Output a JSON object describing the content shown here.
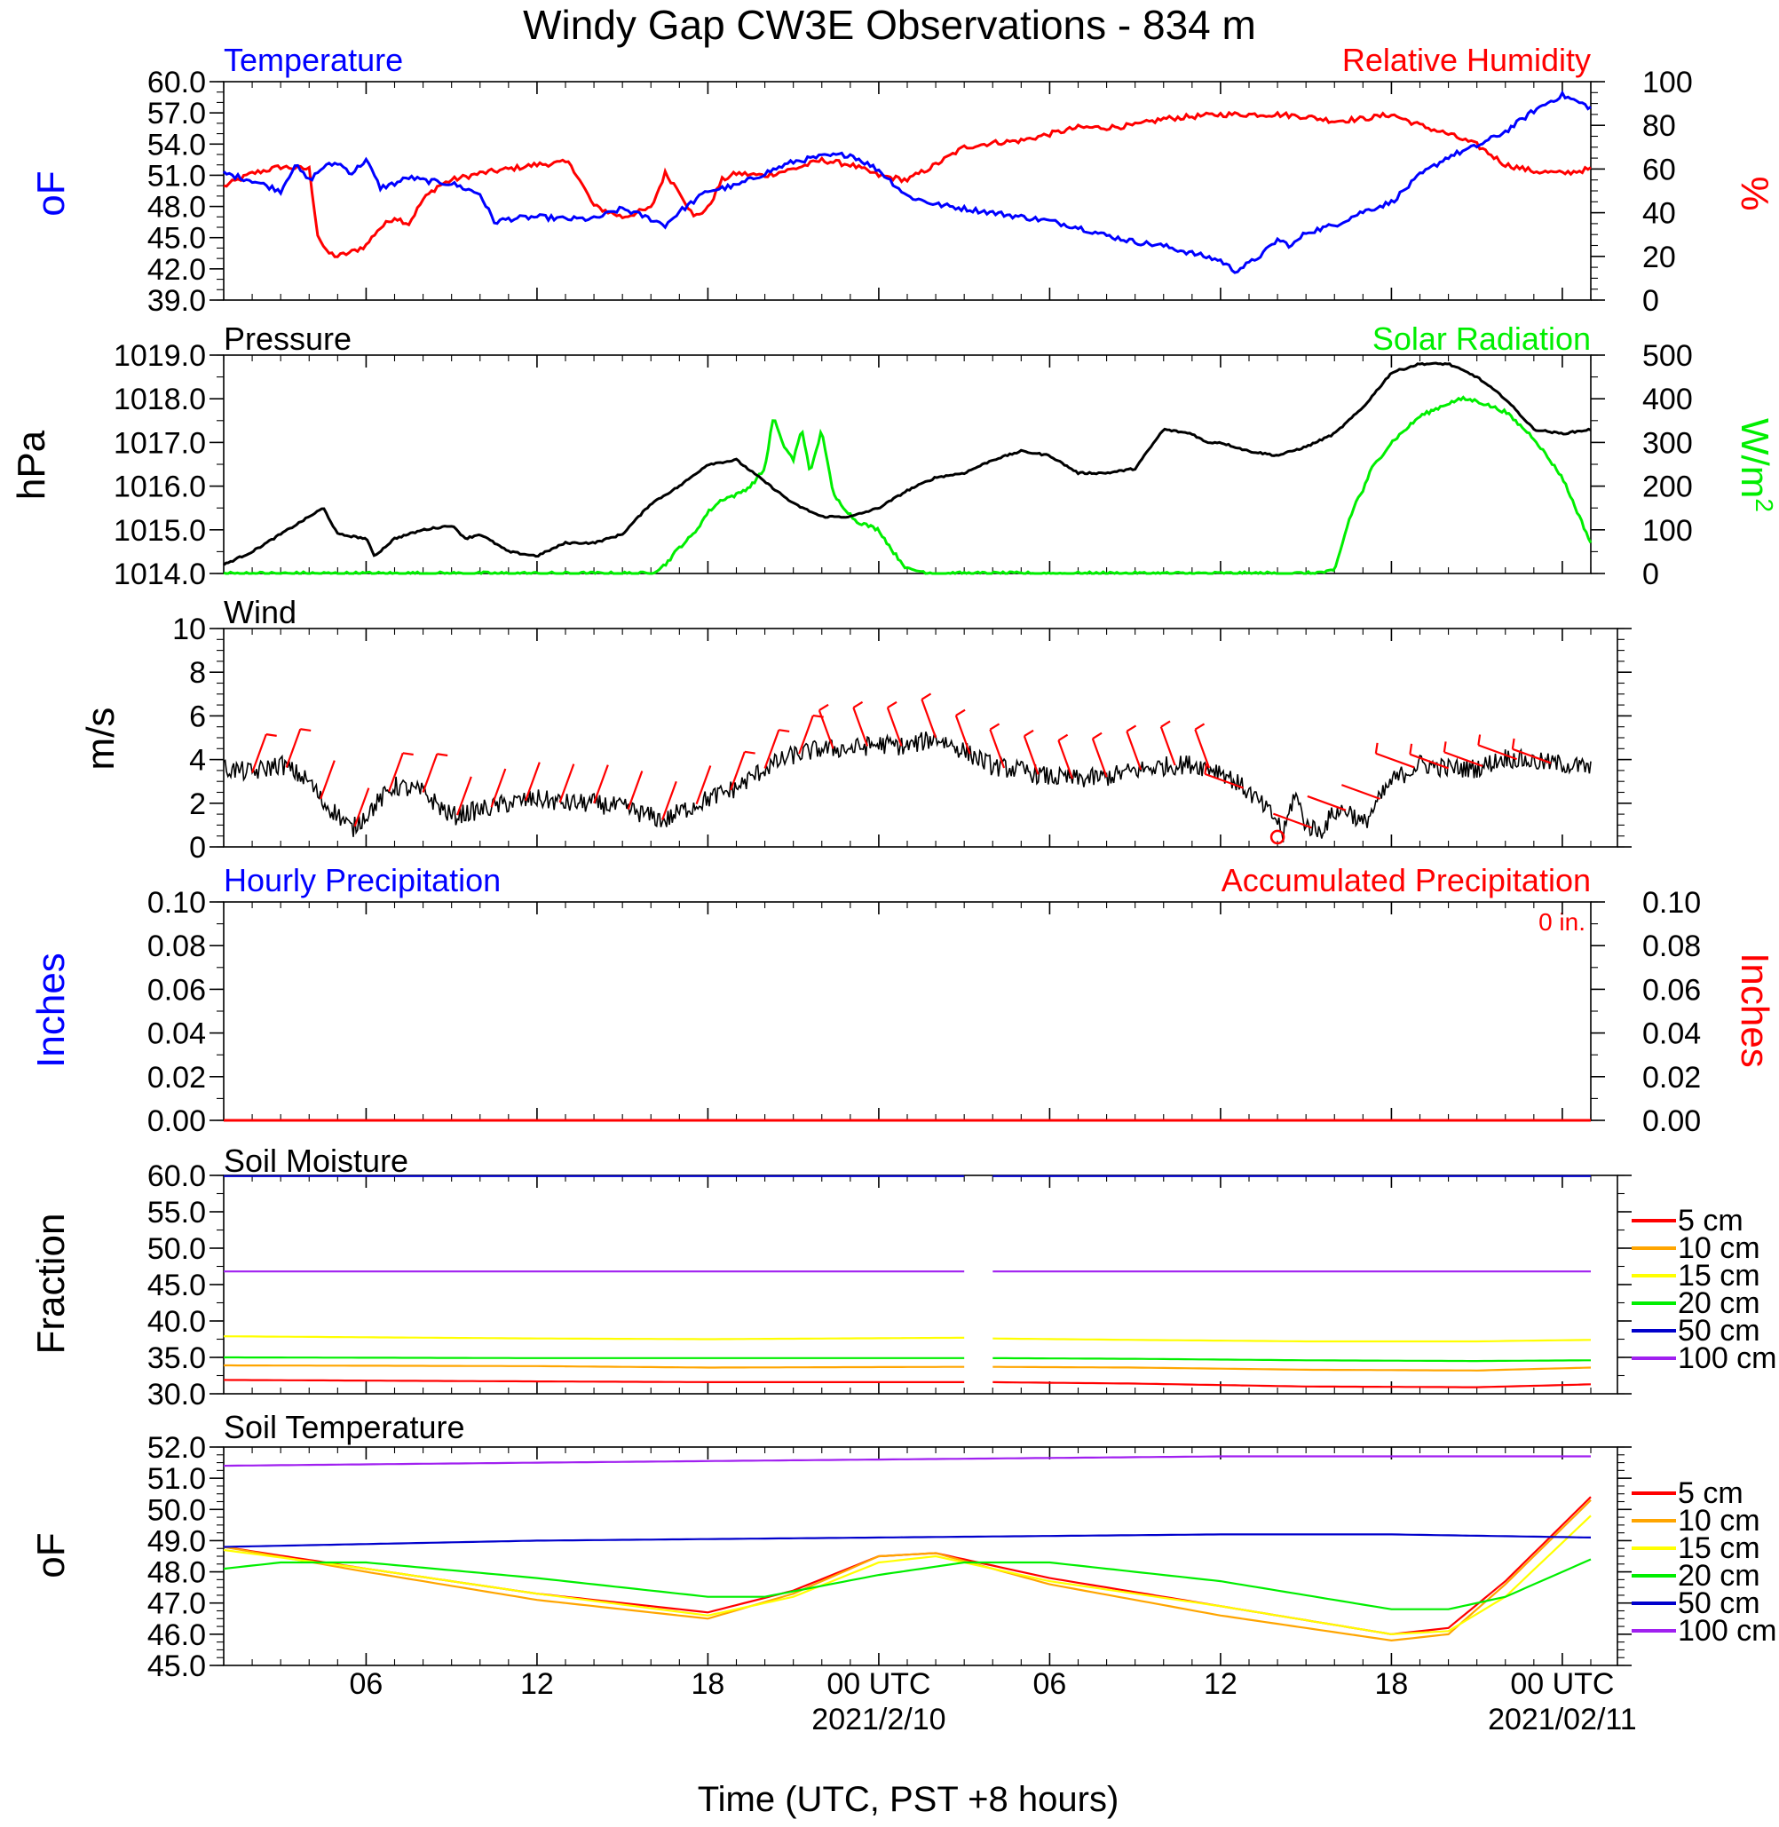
{
  "title": "Windy Gap CW3E Observations - 834 m",
  "x_axis": {
    "label": "Time (UTC, PST +8 hours)",
    "tick_hours": [
      6,
      12,
      18,
      24,
      30,
      36,
      42,
      48
    ],
    "tick_labels": [
      "06",
      "12",
      "18",
      "00 UTC",
      "06",
      "12",
      "18",
      "00 UTC"
    ],
    "date_labels": [
      {
        "hour": 24,
        "text": "2021/2/10"
      },
      {
        "hour": 48,
        "text": "2021/02/11"
      }
    ],
    "start_hour": 1,
    "end_hour": 49
  },
  "colors": {
    "blue": "#0000ff",
    "red": "#ff0000",
    "green": "#00ee00",
    "black": "#000000",
    "orange": "#ffa500",
    "yellow": "#ffff00",
    "darkblue": "#0000cc",
    "purple": "#a020f0"
  },
  "panels": {
    "temperature": {
      "left_title": "Temperature",
      "right_title": "Relative Humidity",
      "left_unit": "oF",
      "right_unit": "%",
      "left_ticks": [
        "60.0",
        "57.0",
        "54.0",
        "51.0",
        "48.0",
        "45.0",
        "42.0",
        "39.0"
      ],
      "right_ticks": [
        "100",
        "80",
        "60",
        "40",
        "20",
        "0"
      ]
    },
    "pressure": {
      "left_title": "Pressure",
      "right_title": "Solar Radiation",
      "left_unit": "hPa",
      "right_unit": "W/m",
      "right_unit_sup": "2",
      "left_ticks": [
        "1019.0",
        "1018.0",
        "1017.0",
        "1016.0",
        "1015.0",
        "1014.0"
      ],
      "right_ticks": [
        "500",
        "400",
        "300",
        "200",
        "100",
        "0"
      ]
    },
    "wind": {
      "left_title": "Wind",
      "left_unit": "m/s",
      "left_ticks": [
        "10",
        "8",
        "6",
        "4",
        "2",
        "0"
      ]
    },
    "precip": {
      "left_title": "Hourly Precipitation",
      "right_title": "Accumulated Precipitation",
      "total_label": "0 in.",
      "left_unit": "Inches",
      "right_unit": "Inches",
      "left_ticks": [
        "0.10",
        "0.08",
        "0.06",
        "0.04",
        "0.02",
        "0.00"
      ],
      "right_ticks": [
        "0.10",
        "0.08",
        "0.06",
        "0.04",
        "0.02",
        "0.00"
      ]
    },
    "soil_moisture": {
      "left_title": "Soil Moisture",
      "left_unit": "Fraction",
      "left_ticks": [
        "60.0",
        "55.0",
        "50.0",
        "45.0",
        "40.0",
        "35.0",
        "30.0"
      ],
      "legend": [
        "5 cm",
        "10 cm",
        "15 cm",
        "20 cm",
        "50 cm",
        "100 cm"
      ]
    },
    "soil_temperature": {
      "left_title": "Soil Temperature",
      "left_unit": "oF",
      "left_ticks": [
        "52.0",
        "51.0",
        "50.0",
        "49.0",
        "48.0",
        "47.0",
        "46.0",
        "45.0"
      ],
      "legend": [
        "5 cm",
        "10 cm",
        "15 cm",
        "20 cm",
        "50 cm",
        "100 cm"
      ]
    }
  },
  "chart_data": [
    {
      "type": "line",
      "title": "Temperature",
      "ylabel": "oF",
      "ylim": [
        39,
        60
      ],
      "series": [
        {
          "name": "Temperature",
          "color": "#0000ff",
          "x": [
            1,
            2,
            3,
            3.5,
            4,
            4.5,
            5,
            5.5,
            6,
            6.5,
            7,
            7.5,
            8,
            9,
            10,
            10.5,
            11,
            12,
            13,
            14,
            15,
            16,
            16.5,
            17,
            18,
            19,
            20,
            21,
            22,
            23,
            24,
            25,
            26,
            27,
            28,
            29,
            30,
            31,
            32,
            33,
            34,
            35,
            36,
            36.5,
            37,
            37.5,
            38,
            38.5,
            39,
            40,
            41,
            42,
            43,
            44,
            45,
            46,
            47,
            47.5,
            48,
            49
          ],
          "y": [
            51.2,
            50.5,
            49.5,
            52,
            50.5,
            51.8,
            52.2,
            51.2,
            52.5,
            49.8,
            50.2,
            50.8,
            50.5,
            50.2,
            49.2,
            46.5,
            46.8,
            47,
            46.8,
            46.8,
            47.8,
            46.8,
            46.2,
            47.5,
            49.5,
            50,
            51.2,
            52.3,
            52.8,
            53,
            51.5,
            49,
            48.2,
            47.8,
            47.4,
            47,
            46.6,
            46,
            45.2,
            44.6,
            44.2,
            43.5,
            42.8,
            41.8,
            42.5,
            43.5,
            44.8,
            44.2,
            45.5,
            46.2,
            47.5,
            48.4,
            51,
            52.8,
            53.8,
            55.2,
            57.2,
            58,
            58.7,
            57.5
          ]
        }
      ]
    },
    {
      "type": "line",
      "title": "Relative Humidity",
      "ylabel": "%",
      "ylim": [
        0,
        100
      ],
      "series": [
        {
          "name": "Relative Humidity",
          "color": "#ff0000",
          "x": [
            1,
            2,
            3,
            4,
            4.3,
            4.6,
            5,
            5.5,
            6,
            6.4,
            7,
            7.5,
            8,
            8.5,
            9,
            10,
            11,
            12,
            13,
            13.2,
            14,
            15,
            16,
            16.5,
            17,
            17.5,
            18,
            18.5,
            19,
            20,
            21,
            22,
            23,
            24,
            25,
            26,
            27,
            28,
            29,
            30,
            31,
            32,
            33,
            34,
            35,
            36,
            37,
            38,
            39,
            40,
            41,
            42,
            43,
            44,
            45,
            46,
            47,
            48,
            49
          ],
          "y": [
            52,
            58,
            61,
            60,
            30,
            22,
            20,
            22,
            25,
            32,
            38,
            35,
            46,
            52,
            55,
            58,
            60,
            62,
            63,
            62,
            43,
            38,
            42,
            58,
            50,
            38,
            42,
            55,
            58,
            57,
            60,
            64,
            62,
            57,
            55,
            62,
            70,
            72,
            73,
            76,
            79,
            79,
            80,
            83,
            84,
            85,
            85,
            85,
            84,
            82,
            83,
            85,
            80,
            76,
            71,
            62,
            59,
            58,
            60
          ]
        }
      ]
    },
    {
      "type": "line",
      "title": "Pressure",
      "ylabel": "hPa",
      "ylim": [
        1014,
        1019
      ],
      "series": [
        {
          "name": "Pressure",
          "color": "#000000",
          "x": [
            1,
            2,
            3,
            4,
            4.5,
            5,
            6,
            6.3,
            7,
            8,
            9,
            9.5,
            10,
            11,
            12,
            13,
            14,
            15,
            16,
            17,
            18,
            19,
            20,
            21,
            22,
            23,
            24,
            25,
            26,
            27,
            28,
            29,
            30,
            31,
            32,
            33,
            34,
            35,
            35.5,
            36,
            37,
            38,
            39,
            40,
            41,
            42,
            43,
            44,
            45,
            46,
            47,
            48,
            49
          ],
          "y": [
            1014.2,
            1014.5,
            1014.9,
            1015.3,
            1015.5,
            1014.9,
            1014.8,
            1014.4,
            1014.8,
            1015.0,
            1015.1,
            1014.8,
            1014.9,
            1014.5,
            1014.4,
            1014.7,
            1014.7,
            1014.9,
            1015.6,
            1016.0,
            1016.5,
            1016.6,
            1016.1,
            1015.6,
            1015.3,
            1015.3,
            1015.5,
            1015.9,
            1016.2,
            1016.3,
            1016.6,
            1016.8,
            1016.7,
            1016.3,
            1016.3,
            1016.4,
            1017.3,
            1017.2,
            1017.0,
            1017.0,
            1016.8,
            1016.7,
            1016.9,
            1017.2,
            1017.8,
            1018.6,
            1018.8,
            1018.8,
            1018.5,
            1018.0,
            1017.3,
            1017.2,
            1017.3
          ]
        }
      ]
    },
    {
      "type": "line",
      "title": "Solar Radiation",
      "ylabel": "W/m2",
      "ylim": [
        0,
        500
      ],
      "series": [
        {
          "name": "Solar Radiation",
          "color": "#00ee00",
          "x": [
            1,
            16,
            16.5,
            17,
            17.5,
            18,
            18.5,
            19,
            19.5,
            20,
            20.3,
            20.6,
            21,
            21.3,
            21.6,
            22,
            22.4,
            22.8,
            23.2,
            23.6,
            24,
            24.5,
            25,
            26,
            39,
            40,
            40.5,
            40.8,
            41,
            41.3,
            42,
            43,
            44,
            44.5,
            45,
            46,
            47,
            48,
            49
          ],
          "y": [
            0,
            0,
            20,
            60,
            90,
            140,
            170,
            180,
            200,
            240,
            360,
            300,
            260,
            330,
            230,
            330,
            180,
            150,
            120,
            110,
            100,
            50,
            10,
            0,
            0,
            5,
            120,
            170,
            190,
            240,
            300,
            360,
            390,
            400,
            395,
            370,
            310,
            220,
            70
          ]
        }
      ]
    },
    {
      "type": "line",
      "title": "Wind",
      "ylabel": "m/s",
      "ylim": [
        0,
        10
      ],
      "series": [
        {
          "name": "Wind Speed",
          "color": "#000000",
          "x": [
            1,
            2,
            3,
            4,
            4.5,
            5,
            5.5,
            6,
            7,
            8,
            9,
            10,
            11,
            12,
            13,
            14,
            15,
            16,
            16.5,
            17,
            18,
            19,
            20,
            21,
            22,
            23,
            24,
            25,
            26,
            27,
            28,
            29,
            30,
            31,
            32,
            33,
            34,
            35,
            36,
            37,
            38,
            38.2,
            38.6,
            39,
            39.5,
            40,
            40.5,
            41,
            42,
            43,
            44,
            45,
            46,
            47,
            48,
            49
          ],
          "y": [
            3.6,
            3.4,
            3.8,
            3.0,
            2.0,
            1.5,
            0.8,
            1.5,
            2.8,
            2.5,
            1.4,
            1.7,
            2.0,
            2.2,
            2.0,
            2.0,
            1.8,
            1.4,
            1.2,
            1.6,
            2.2,
            2.7,
            3.6,
            4.2,
            4.5,
            4.5,
            4.7,
            4.6,
            5.0,
            4.4,
            3.7,
            3.5,
            3.2,
            3.1,
            3.2,
            3.5,
            3.7,
            3.8,
            3.5,
            2.5,
            1.2,
            0.5,
            2.5,
            1.0,
            0.7,
            1.6,
            1.7,
            1.0,
            3.0,
            3.8,
            3.6,
            3.6,
            4.1,
            3.9,
            3.8,
            3.6
          ]
        }
      ]
    },
    {
      "type": "line",
      "title": "Hourly Precipitation",
      "ylabel": "Inches",
      "ylim": [
        0,
        0.1
      ],
      "series": [
        {
          "name": "Hourly Precipitation",
          "color": "#0000ff",
          "x": [
            1,
            49
          ],
          "y": [
            0,
            0
          ]
        }
      ]
    },
    {
      "type": "line",
      "title": "Accumulated Precipitation",
      "ylabel": "Inches",
      "ylim": [
        0,
        0.1
      ],
      "series": [
        {
          "name": "Accumulated Precipitation",
          "color": "#ff0000",
          "x": [
            1,
            49
          ],
          "y": [
            0,
            0
          ]
        }
      ]
    },
    {
      "type": "line",
      "title": "Soil Moisture",
      "ylabel": "Fraction",
      "ylim": [
        30,
        60
      ],
      "series": [
        {
          "name": "5 cm",
          "color": "#ff0000",
          "x": [
            1,
            12,
            18,
            27,
            27.8,
            33,
            39,
            45,
            49
          ],
          "y": [
            31.9,
            31.7,
            31.6,
            31.6,
            31.6,
            31.4,
            31.0,
            30.9,
            31.3
          ]
        },
        {
          "name": "10 cm",
          "color": "#ffa500",
          "x": [
            1,
            12,
            18,
            27,
            27.8,
            33,
            39,
            45,
            49
          ],
          "y": [
            33.9,
            33.8,
            33.6,
            33.7,
            33.7,
            33.6,
            33.3,
            33.2,
            33.6
          ]
        },
        {
          "name": "15 cm",
          "color": "#ffff00",
          "x": [
            1,
            12,
            18,
            27,
            27.8,
            33,
            39,
            45,
            49
          ],
          "y": [
            37.9,
            37.6,
            37.5,
            37.7,
            37.6,
            37.4,
            37.2,
            37.2,
            37.4
          ]
        },
        {
          "name": "20 cm",
          "color": "#00ee00",
          "x": [
            1,
            12,
            18,
            27,
            27.8,
            33,
            39,
            45,
            49
          ],
          "y": [
            35.0,
            34.9,
            34.9,
            34.9,
            34.9,
            34.8,
            34.6,
            34.5,
            34.6
          ]
        },
        {
          "name": "50 cm",
          "color": "#0000cc",
          "x": [
            1,
            27,
            27.8,
            49
          ],
          "y": [
            59.9,
            59.9,
            59.9,
            59.9
          ]
        },
        {
          "name": "100 cm",
          "color": "#a020f0",
          "x": [
            1,
            27,
            27.8,
            49
          ],
          "y": [
            46.8,
            46.8,
            46.8,
            46.8
          ]
        }
      ]
    },
    {
      "type": "line",
      "title": "Soil Temperature",
      "ylabel": "oF",
      "ylim": [
        45,
        52
      ],
      "series": [
        {
          "name": "5 cm",
          "color": "#ff0000",
          "x": [
            1,
            6,
            12,
            18,
            21,
            24,
            26,
            30,
            36,
            42,
            44,
            46,
            49
          ],
          "y": [
            48.8,
            48.1,
            47.3,
            46.7,
            47.4,
            48.5,
            48.6,
            47.8,
            46.9,
            46.0,
            46.2,
            47.7,
            50.4
          ]
        },
        {
          "name": "10 cm",
          "color": "#ffa500",
          "x": [
            1,
            6,
            12,
            18,
            21,
            24,
            26,
            30,
            36,
            42,
            44,
            46,
            49
          ],
          "y": [
            48.8,
            48.0,
            47.1,
            46.5,
            47.3,
            48.5,
            48.6,
            47.6,
            46.6,
            45.8,
            46.0,
            47.6,
            50.3
          ]
        },
        {
          "name": "15 cm",
          "color": "#ffff00",
          "x": [
            1,
            6,
            12,
            18,
            21,
            24,
            26,
            30,
            36,
            42,
            44,
            46,
            49
          ],
          "y": [
            48.7,
            48.1,
            47.3,
            46.6,
            47.2,
            48.3,
            48.5,
            47.7,
            46.9,
            46.0,
            46.1,
            47.2,
            49.8
          ]
        },
        {
          "name": "20 cm",
          "color": "#00ee00",
          "x": [
            1,
            3,
            6,
            12,
            18,
            20,
            24,
            27,
            30,
            36,
            42,
            44,
            46,
            49
          ],
          "y": [
            48.1,
            48.3,
            48.3,
            47.8,
            47.2,
            47.2,
            47.9,
            48.3,
            48.3,
            47.7,
            46.8,
            46.8,
            47.2,
            48.4
          ]
        },
        {
          "name": "50 cm",
          "color": "#0000cc",
          "x": [
            1,
            12,
            24,
            36,
            42,
            49
          ],
          "y": [
            48.8,
            49.0,
            49.1,
            49.2,
            49.2,
            49.1
          ]
        },
        {
          "name": "100 cm",
          "color": "#a020f0",
          "x": [
            1,
            12,
            24,
            36,
            49
          ],
          "y": [
            51.4,
            51.5,
            51.6,
            51.7,
            51.7
          ]
        }
      ]
    }
  ]
}
